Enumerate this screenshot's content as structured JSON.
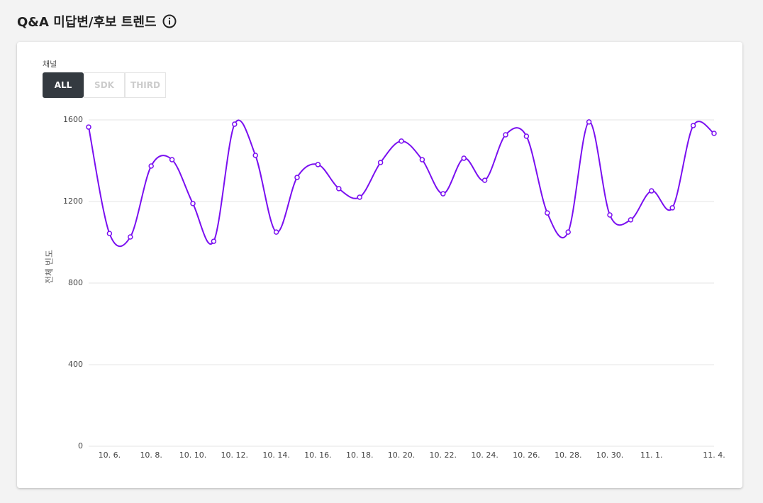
{
  "title": "Q&A 미답변/후보 트렌드",
  "channel": {
    "label": "채널",
    "options": [
      "ALL",
      "SDK",
      "THIRD"
    ],
    "selected": 0
  },
  "chart_data": {
    "type": "line",
    "y_label": "전체 빈도",
    "color": "#7a0ff0",
    "categories": [
      null,
      "10. 6.",
      null,
      "10. 8.",
      null,
      "10. 10.",
      null,
      "10. 12.",
      null,
      "10. 14.",
      null,
      "10. 16.",
      null,
      "10. 18.",
      null,
      "10. 20.",
      null,
      "10. 22.",
      null,
      "10. 24.",
      null,
      "10. 26.",
      null,
      "10. 28.",
      null,
      "10. 30.",
      null,
      "11. 1.",
      null,
      null,
      "11. 4."
    ],
    "values": [
      1565,
      1043,
      1026,
      1374,
      1405,
      1190,
      1005,
      1579,
      1426,
      1050,
      1318,
      1381,
      1263,
      1221,
      1391,
      1496,
      1405,
      1238,
      1412,
      1304,
      1527,
      1520,
      1144,
      1050,
      1590,
      1134,
      1110,
      1252,
      1169,
      1572,
      1534
    ],
    "ylim": [
      0,
      1600
    ],
    "yticks": [
      0,
      400,
      800,
      1200,
      1600
    ],
    "grid": true
  }
}
